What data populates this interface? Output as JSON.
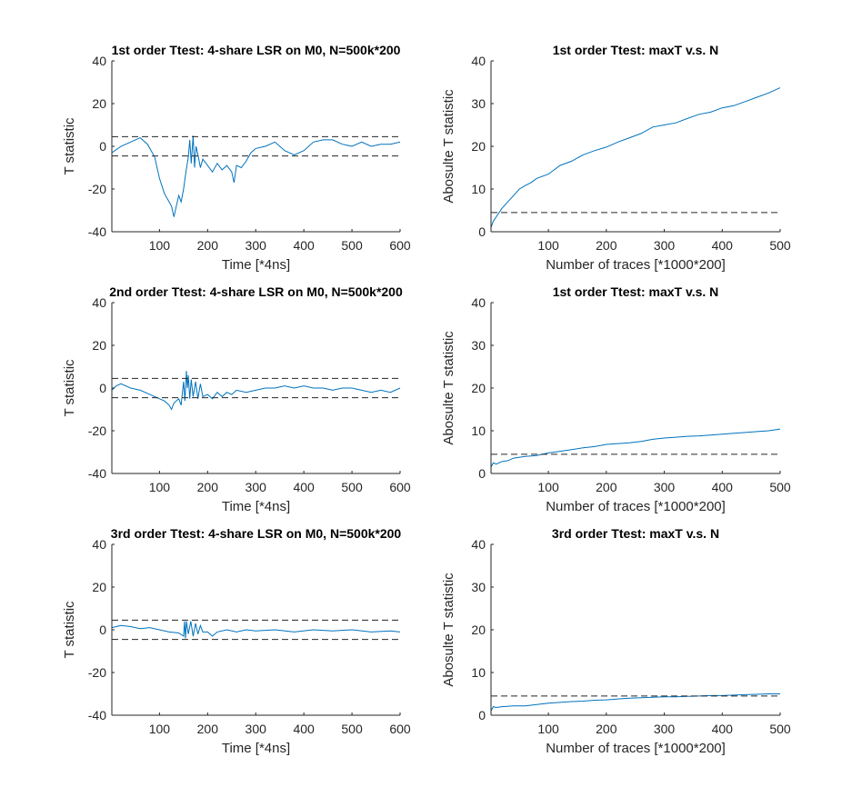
{
  "colors": {
    "trace": "#0072BD",
    "threshold": "#262626",
    "axis": "#262626",
    "background": "#ffffff"
  },
  "chart_data": [
    {
      "type": "line",
      "title": "1st order Ttest: 4-share LSR on M0, N=500k*200",
      "xlabel": "Time [*4ns]",
      "ylabel": "T statistic",
      "xlim": [
        1,
        600
      ],
      "ylim": [
        -40,
        40
      ],
      "xticks": [
        100,
        200,
        300,
        400,
        500,
        600
      ],
      "yticks": [
        -40,
        -20,
        0,
        20,
        40
      ],
      "threshold": [
        4.5,
        -4.5
      ],
      "grid": false,
      "legend": "none",
      "series": [
        {
          "x": [
            1,
            20,
            40,
            60,
            75,
            90,
            100,
            110,
            125,
            130,
            135,
            140,
            145,
            150,
            155,
            160,
            163,
            166,
            170,
            173,
            176,
            180,
            185,
            190,
            200,
            210,
            220,
            230,
            240,
            250,
            255,
            260,
            270,
            280,
            290,
            300,
            320,
            340,
            360,
            380,
            400,
            420,
            440,
            460,
            480,
            500,
            520,
            540,
            560,
            580,
            600
          ],
          "values": [
            -3,
            0,
            2,
            4,
            1,
            -5,
            -15,
            -22,
            -28,
            -33,
            -28,
            -23,
            -26,
            -20,
            -12,
            -5,
            3,
            -8,
            5,
            -10,
            0,
            -4,
            -10,
            -6,
            -9,
            -12,
            -8,
            -11,
            -9,
            -12,
            -17,
            -9,
            -10,
            -7,
            -3,
            -1,
            0,
            2,
            -2,
            -4,
            -2,
            2,
            3,
            3,
            1,
            0,
            2,
            0,
            1,
            1,
            2
          ]
        }
      ]
    },
    {
      "type": "line",
      "title": "1st order Ttest: maxT v.s. N",
      "xlabel": "Number of traces [*1000*200]",
      "ylabel": "Abosulte T statistic",
      "xlim": [
        1,
        500
      ],
      "ylim": [
        0,
        40
      ],
      "xticks": [
        100,
        200,
        300,
        400,
        500
      ],
      "yticks": [
        0,
        10,
        20,
        30,
        40
      ],
      "threshold": [
        4.5
      ],
      "grid": false,
      "legend": "none",
      "series": [
        {
          "x": [
            1,
            5,
            10,
            20,
            30,
            40,
            50,
            60,
            70,
            80,
            100,
            120,
            140,
            160,
            180,
            200,
            220,
            240,
            260,
            280,
            300,
            320,
            340,
            360,
            380,
            400,
            420,
            440,
            460,
            480,
            500
          ],
          "values": [
            1,
            2.5,
            3.5,
            5.5,
            7,
            8.5,
            10,
            10.8,
            11.5,
            12.5,
            13.5,
            15.5,
            16.5,
            18,
            19,
            19.8,
            21,
            22,
            23,
            24.5,
            25,
            25.5,
            26.5,
            27.5,
            28,
            29,
            29.5,
            30.5,
            31.5,
            32.5,
            33.7
          ]
        }
      ]
    },
    {
      "type": "line",
      "title": "2nd order Ttest: 4-share LSR on M0, N=500k*200",
      "xlabel": "Time [*4ns]",
      "ylabel": "T statistic",
      "xlim": [
        1,
        600
      ],
      "ylim": [
        -40,
        40
      ],
      "xticks": [
        100,
        200,
        300,
        400,
        500,
        600
      ],
      "yticks": [
        -40,
        -20,
        0,
        20,
        40
      ],
      "threshold": [
        4.5,
        -4.5
      ],
      "grid": false,
      "legend": "none",
      "series": [
        {
          "x": [
            1,
            10,
            20,
            40,
            60,
            80,
            100,
            110,
            120,
            125,
            130,
            140,
            145,
            150,
            153,
            156,
            158,
            160,
            163,
            166,
            170,
            175,
            180,
            185,
            190,
            200,
            210,
            220,
            230,
            240,
            250,
            260,
            280,
            300,
            320,
            340,
            360,
            380,
            400,
            420,
            440,
            460,
            480,
            500,
            520,
            540,
            560,
            580,
            600
          ],
          "values": [
            -1,
            1,
            2,
            0,
            -1,
            -3,
            -5,
            -6,
            -8,
            -10,
            -7,
            -5,
            -8,
            3,
            -6,
            8,
            0,
            6,
            -5,
            4,
            -4,
            3,
            -5,
            2,
            -4,
            -3,
            -5,
            -2,
            -4,
            -2,
            -3,
            -1,
            -2,
            -1,
            0,
            0,
            1,
            0,
            1,
            0,
            0,
            -1,
            0,
            0,
            -1,
            -2,
            -1,
            -2,
            0
          ]
        }
      ]
    },
    {
      "type": "line",
      "title": "1st order Ttest: maxT v.s. N",
      "xlabel": "Number of traces [*1000*200]",
      "ylabel": "Abosulte T statistic",
      "xlim": [
        1,
        500
      ],
      "ylim": [
        0,
        40
      ],
      "xticks": [
        100,
        200,
        300,
        400,
        500
      ],
      "yticks": [
        0,
        10,
        20,
        30,
        40
      ],
      "threshold": [
        4.5
      ],
      "grid": false,
      "legend": "none",
      "series": [
        {
          "x": [
            1,
            5,
            10,
            20,
            30,
            40,
            60,
            80,
            100,
            120,
            140,
            160,
            180,
            200,
            220,
            240,
            260,
            280,
            300,
            320,
            340,
            360,
            380,
            400,
            420,
            440,
            460,
            480,
            500
          ],
          "values": [
            1.5,
            2.5,
            2.2,
            2.8,
            3,
            3.6,
            4,
            4.2,
            4.8,
            5.2,
            5.6,
            6,
            6.3,
            6.8,
            7,
            7.2,
            7.5,
            8,
            8.3,
            8.5,
            8.7,
            8.8,
            9,
            9.2,
            9.4,
            9.6,
            9.8,
            10,
            10.4
          ]
        }
      ]
    },
    {
      "type": "line",
      "title": "3rd order Ttest: 4-share LSR on M0, N=500k*200",
      "xlabel": "Time [*4ns]",
      "ylabel": "T statistic",
      "xlim": [
        1,
        600
      ],
      "ylim": [
        -40,
        40
      ],
      "xticks": [
        100,
        200,
        300,
        400,
        500,
        600
      ],
      "yticks": [
        -40,
        -20,
        0,
        20,
        40
      ],
      "threshold": [
        4.5,
        -4.5
      ],
      "grid": false,
      "legend": "none",
      "series": [
        {
          "x": [
            1,
            20,
            40,
            60,
            80,
            100,
            120,
            140,
            150,
            152,
            154,
            156,
            160,
            165,
            170,
            175,
            180,
            185,
            190,
            200,
            210,
            220,
            240,
            260,
            280,
            300,
            340,
            380,
            420,
            460,
            500,
            540,
            580,
            600
          ],
          "values": [
            1,
            2,
            1.5,
            0.5,
            1,
            0,
            -1,
            -1.5,
            -3,
            4,
            -4,
            4,
            -2,
            4,
            -3,
            3,
            -2,
            2,
            -1,
            -1,
            -3,
            -1,
            0,
            -1,
            0,
            -0.5,
            0,
            -1,
            0,
            -0.5,
            0,
            -1,
            -0.5,
            -1
          ]
        }
      ]
    },
    {
      "type": "line",
      "title": "3rd order Ttest: maxT v.s. N",
      "xlabel": "Number of traces [*1000*200]",
      "ylabel": "Abosulte T statistic",
      "xlim": [
        1,
        500
      ],
      "ylim": [
        0,
        40
      ],
      "xticks": [
        100,
        200,
        300,
        400,
        500
      ],
      "yticks": [
        0,
        10,
        20,
        30,
        40
      ],
      "threshold": [
        4.5
      ],
      "grid": false,
      "legend": "none",
      "series": [
        {
          "x": [
            1,
            5,
            10,
            20,
            40,
            60,
            80,
            100,
            120,
            140,
            160,
            180,
            200,
            220,
            240,
            260,
            280,
            300,
            320,
            340,
            360,
            380,
            400,
            420,
            440,
            460,
            480,
            500
          ],
          "values": [
            1,
            2,
            1.8,
            2,
            2.2,
            2.2,
            2.5,
            2.8,
            3,
            3.2,
            3.3,
            3.5,
            3.6,
            3.8,
            4,
            4.1,
            4.2,
            4.3,
            4.3,
            4.4,
            4.5,
            4.6,
            4.6,
            4.7,
            4.8,
            4.9,
            5,
            5
          ]
        }
      ]
    }
  ]
}
